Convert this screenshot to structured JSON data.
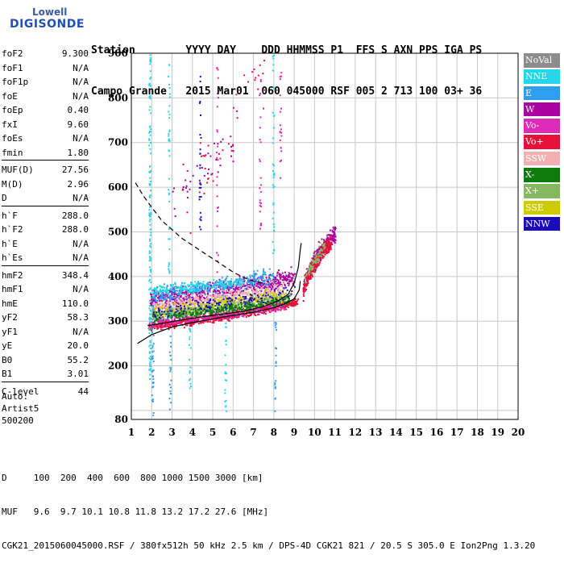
{
  "logo": {
    "top": "Lowell",
    "main": "DIGISONDE"
  },
  "header": {
    "row1": "Station        YYYY DAY    DDD HHMMSS P1  FFS S AXN PPS IGA PS",
    "row2": "Campo Grande   2015 Mar01  060 045000 RSF 005 2 713 100 03+ 36"
  },
  "params": [
    {
      "label": "foF2",
      "value": "9.300"
    },
    {
      "label": "foF1",
      "value": "N/A"
    },
    {
      "label": "foF1p",
      "value": "N/A"
    },
    {
      "label": "foE",
      "value": "N/A"
    },
    {
      "label": "foEp",
      "value": "0.40"
    },
    {
      "label": "fxI",
      "value": "9.60"
    },
    {
      "label": "foEs",
      "value": "N/A"
    },
    {
      "label": "fmin",
      "value": "1.80"
    },
    {
      "sep": true
    },
    {
      "label": "MUF(D)",
      "value": "27.56"
    },
    {
      "label": "M(D)",
      "value": "2.96"
    },
    {
      "label": "D",
      "value": "N/A"
    },
    {
      "sep": true
    },
    {
      "label": "h`F",
      "value": "288.0"
    },
    {
      "label": "h`F2",
      "value": "288.0"
    },
    {
      "label": "h`E",
      "value": "N/A"
    },
    {
      "label": "h`Es",
      "value": "N/A"
    },
    {
      "sep": true
    },
    {
      "label": "hmF2",
      "value": "348.4"
    },
    {
      "label": "hmF1",
      "value": "N/A"
    },
    {
      "label": "hmE",
      "value": "110.0"
    },
    {
      "label": "yF2",
      "value": "58.3"
    },
    {
      "label": "yF1",
      "value": "N/A"
    },
    {
      "label": "yE",
      "value": "20.0"
    },
    {
      "label": "B0",
      "value": "55.2"
    },
    {
      "label": "B1",
      "value": "3.01"
    },
    {
      "sep": true
    },
    {
      "label": "C-level",
      "value": "44"
    }
  ],
  "auto": {
    "line1": "Auto:",
    "line2": "Artist5",
    "line3": "500200"
  },
  "bottom": {
    "line1": "D     100  200  400  600  800 1000 1500 3000 [km]",
    "line2": "MUF   9.6  9.7 10.1 10.8 11.8 13.2 17.2 27.6 [MHz]",
    "line3": "CGK21_2015060045000.RSF / 380fx512h 50 kHz 2.5 km / DPS-4D CGK21 821 / 20.5 S 305.0 E Ion2Png 1.3.20"
  },
  "legend": [
    {
      "label": "NoVal",
      "color": "#8c8c8c"
    },
    {
      "label": "NNE",
      "color": "#26d6e8"
    },
    {
      "label": "E",
      "color": "#2e9ef0"
    },
    {
      "label": "W",
      "color": "#aa00a0"
    },
    {
      "label": "Vo-",
      "color": "#e02ab8"
    },
    {
      "label": "Vo+",
      "color": "#e8103a"
    },
    {
      "label": "SSW",
      "color": "#f2b0b0"
    },
    {
      "label": "X-",
      "color": "#0c7a0c"
    },
    {
      "label": "X+",
      "color": "#86b860"
    },
    {
      "label": "SSE",
      "color": "#cccc00"
    },
    {
      "label": "NNW",
      "color": "#1a0ab8"
    }
  ],
  "chart_data": {
    "type": "scatter",
    "xlim": [
      1,
      20
    ],
    "ylim": [
      80,
      900
    ],
    "x_ticks": [
      1,
      2,
      3,
      4,
      5,
      6,
      7,
      8,
      9,
      10,
      11,
      12,
      13,
      14,
      15,
      16,
      17,
      18,
      19,
      20
    ],
    "y_ticks": [
      80,
      200,
      300,
      400,
      500,
      600,
      700,
      800,
      900
    ],
    "y_grid": [
      100,
      200,
      300,
      400,
      500,
      600,
      700,
      800,
      900
    ],
    "grid": true,
    "legend_position": "right",
    "traces": [
      {
        "name": "true-height-profile",
        "style": "solid",
        "points": [
          [
            1.3,
            250
          ],
          [
            2,
            270
          ],
          [
            3,
            287
          ],
          [
            4,
            297
          ],
          [
            5,
            305
          ],
          [
            6,
            313
          ],
          [
            7,
            320
          ],
          [
            8,
            330
          ],
          [
            8.6,
            340
          ],
          [
            9.0,
            350
          ],
          [
            9.25,
            370
          ],
          [
            9.3,
            390
          ]
        ]
      },
      {
        "name": "trace-virtual-height",
        "style": "solid",
        "points": [
          [
            1.8,
            290
          ],
          [
            2.5,
            295
          ],
          [
            3.5,
            303
          ],
          [
            4.5,
            310
          ],
          [
            5.5,
            316
          ],
          [
            6.5,
            322
          ],
          [
            7.5,
            333
          ],
          [
            8.2,
            345
          ],
          [
            8.7,
            360
          ],
          [
            9.0,
            385
          ],
          [
            9.2,
            420
          ],
          [
            9.3,
            460
          ],
          [
            9.35,
            475
          ]
        ]
      },
      {
        "name": "model-curve",
        "style": "dashed",
        "points": [
          [
            1.2,
            610
          ],
          [
            1.6,
            580
          ],
          [
            2.0,
            555
          ],
          [
            2.5,
            525
          ],
          [
            3.0,
            505
          ],
          [
            3.5,
            485
          ],
          [
            4.0,
            470
          ],
          [
            4.5,
            455
          ],
          [
            5.0,
            440
          ],
          [
            5.5,
            425
          ],
          [
            6.0,
            410
          ],
          [
            6.5,
            398
          ],
          [
            7.0,
            390
          ],
          [
            7.5,
            385
          ]
        ]
      }
    ],
    "echo_clusters": [
      {
        "color": "#e8103a",
        "x": [
          1.8,
          9.2
        ],
        "h0": 290,
        "h1": 345,
        "curve": 1.3,
        "spread": 14,
        "n": 700
      },
      {
        "color": "#e02ab8",
        "x": [
          1.9,
          8.5
        ],
        "h0": 300,
        "h1": 335,
        "curve": 1.4,
        "spread": 16,
        "n": 300
      },
      {
        "color": "#aa00a0",
        "x": [
          1.9,
          9.0
        ],
        "h0": 350,
        "h1": 400,
        "curve": 1.2,
        "spread": 30,
        "n": 700
      },
      {
        "color": "#f2b0b0",
        "x": [
          2.0,
          8.5
        ],
        "h0": 330,
        "h1": 370,
        "curve": 1.0,
        "spread": 30,
        "n": 500
      },
      {
        "color": "#cccc00",
        "x": [
          2.0,
          8.5
        ],
        "h0": 320,
        "h1": 360,
        "curve": 1.0,
        "spread": 22,
        "n": 350
      },
      {
        "color": "#86b860",
        "x": [
          2.0,
          8.8
        ],
        "h0": 315,
        "h1": 355,
        "curve": 1.2,
        "spread": 18,
        "n": 350
      },
      {
        "color": "#0c7a0c",
        "x": [
          2.0,
          8.8
        ],
        "h0": 310,
        "h1": 350,
        "curve": 1.2,
        "spread": 14,
        "n": 300
      },
      {
        "color": "#2e9ef0",
        "x": [
          2.0,
          8.0
        ],
        "h0": 360,
        "h1": 400,
        "curve": 1.0,
        "spread": 25,
        "n": 300
      },
      {
        "color": "#26d6e8",
        "x": [
          2.0,
          6.5
        ],
        "h0": 370,
        "h1": 390,
        "curve": 1.0,
        "spread": 18,
        "n": 200
      },
      {
        "color": "#1a0ab8",
        "x": [
          2.0,
          9.0
        ],
        "h0": 320,
        "h1": 370,
        "curve": 1.1,
        "spread": 25,
        "n": 150
      },
      {
        "color": "#aa00a0",
        "x": [
          9.4,
          11.0
        ],
        "h0": 360,
        "h1": 500,
        "curve": 0.6,
        "spread": 30,
        "n": 300
      },
      {
        "color": "#e8103a",
        "x": [
          9.4,
          10.8
        ],
        "h0": 360,
        "h1": 480,
        "curve": 0.6,
        "spread": 25,
        "n": 250
      },
      {
        "color": "#86b860",
        "x": [
          9.5,
          10.5
        ],
        "h0": 380,
        "h1": 470,
        "curve": 0.6,
        "spread": 25,
        "n": 80
      },
      {
        "color": "#aa00a0",
        "x": [
          3.0,
          6.0
        ],
        "h0": 560,
        "h1": 700,
        "curve": 1.0,
        "spread": 80,
        "n": 40
      },
      {
        "color": "#e8103a",
        "x": [
          3.5,
          7.5
        ],
        "h0": 560,
        "h1": 850,
        "curve": 1.0,
        "spread": 120,
        "n": 40
      }
    ],
    "vertical_streaks": [
      {
        "x": 1.88,
        "color": "#26d6e8",
        "h": [
          170,
          900
        ],
        "n": 140
      },
      {
        "x": 2.02,
        "color": "#2e9ef0",
        "h": [
          90,
          360
        ],
        "n": 40
      },
      {
        "x": 2.82,
        "color": "#26d6e8",
        "h": [
          400,
          880
        ],
        "n": 40
      },
      {
        "x": 2.88,
        "color": "#2e9ef0",
        "h": [
          100,
          360
        ],
        "n": 30
      },
      {
        "x": 3.85,
        "color": "#26d6e8",
        "h": [
          150,
          310
        ],
        "n": 20
      },
      {
        "x": 4.35,
        "color": "#1a0ab8",
        "h": [
          480,
          880
        ],
        "n": 25
      },
      {
        "x": 5.2,
        "color": "#e02ab8",
        "h": [
          400,
          880
        ],
        "n": 25
      },
      {
        "x": 5.6,
        "color": "#26d6e8",
        "h": [
          100,
          300
        ],
        "n": 20
      },
      {
        "x": 7.3,
        "color": "#e02ab8",
        "h": [
          500,
          880
        ],
        "n": 25
      },
      {
        "x": 7.95,
        "color": "#26d6e8",
        "h": [
          450,
          900
        ],
        "n": 40
      },
      {
        "x": 8.05,
        "color": "#2e9ef0",
        "h": [
          100,
          300
        ],
        "n": 20
      },
      {
        "x": 8.3,
        "color": "#e02ab8",
        "h": [
          600,
          880
        ],
        "n": 20
      }
    ]
  }
}
